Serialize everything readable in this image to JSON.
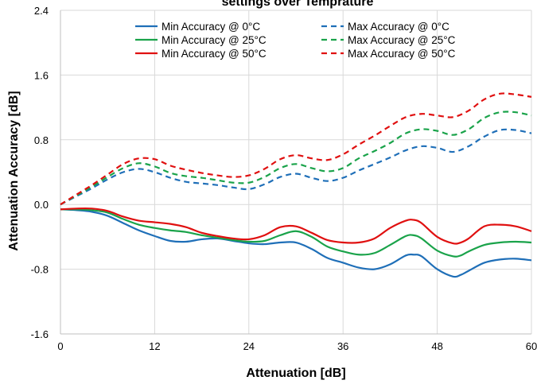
{
  "chart_data": {
    "type": "line",
    "title": "settings over Temprature",
    "xlabel": "Attenuation [dB]",
    "ylabel": "Attenuation Accuracy [dB]",
    "xlim": [
      0,
      60
    ],
    "ylim": [
      -1.6,
      2.4
    ],
    "xticks": [
      0,
      12,
      24,
      36,
      48,
      60
    ],
    "xtick_labels": [
      "0",
      "12",
      "24",
      "36",
      "48",
      "60"
    ],
    "yticks": [
      -1.6,
      -0.8,
      0.0,
      0.8,
      1.6,
      2.4
    ],
    "ytick_labels": [
      "-1.6",
      "-0.8",
      "0.0",
      "0.8",
      "1.6",
      "2.4"
    ],
    "grid": true,
    "legend_position": "top",
    "series": [
      {
        "name": "Min Accuracy @ 0°C",
        "color": "#1f6fb8",
        "dash": "solid",
        "x": [
          0,
          2,
          4,
          6,
          8,
          10,
          12,
          14,
          16,
          18,
          20,
          22,
          24,
          26,
          28,
          30,
          32,
          34,
          36,
          38,
          40,
          42,
          44,
          45,
          46,
          48,
          50,
          51,
          52,
          54,
          56,
          58,
          60
        ],
        "y": [
          -0.06,
          -0.07,
          -0.09,
          -0.14,
          -0.23,
          -0.32,
          -0.39,
          -0.45,
          -0.46,
          -0.43,
          -0.42,
          -0.45,
          -0.48,
          -0.49,
          -0.47,
          -0.47,
          -0.55,
          -0.66,
          -0.72,
          -0.78,
          -0.8,
          -0.74,
          -0.63,
          -0.62,
          -0.64,
          -0.8,
          -0.89,
          -0.87,
          -0.82,
          -0.72,
          -0.68,
          -0.67,
          -0.69
        ]
      },
      {
        "name": "Min Accuracy @ 25°C",
        "color": "#1aa34a",
        "dash": "solid",
        "x": [
          0,
          2,
          4,
          6,
          8,
          10,
          12,
          14,
          16,
          18,
          20,
          22,
          24,
          26,
          28,
          30,
          32,
          34,
          36,
          38,
          40,
          42,
          44,
          45,
          46,
          48,
          50,
          51,
          52,
          54,
          56,
          58,
          60
        ],
        "y": [
          -0.06,
          -0.06,
          -0.07,
          -0.1,
          -0.18,
          -0.25,
          -0.29,
          -0.32,
          -0.34,
          -0.38,
          -0.41,
          -0.44,
          -0.46,
          -0.45,
          -0.38,
          -0.33,
          -0.4,
          -0.52,
          -0.58,
          -0.62,
          -0.6,
          -0.5,
          -0.39,
          -0.38,
          -0.42,
          -0.57,
          -0.64,
          -0.63,
          -0.58,
          -0.5,
          -0.47,
          -0.46,
          -0.47
        ]
      },
      {
        "name": "Min Accuracy @ 50°C",
        "color": "#e01010",
        "dash": "solid",
        "x": [
          0,
          2,
          4,
          6,
          8,
          10,
          12,
          14,
          16,
          18,
          20,
          22,
          24,
          26,
          28,
          30,
          32,
          34,
          36,
          38,
          40,
          42,
          44,
          45,
          46,
          48,
          50,
          51,
          52,
          54,
          56,
          58,
          60
        ],
        "y": [
          -0.06,
          -0.05,
          -0.05,
          -0.08,
          -0.15,
          -0.2,
          -0.22,
          -0.24,
          -0.28,
          -0.35,
          -0.39,
          -0.42,
          -0.43,
          -0.38,
          -0.28,
          -0.27,
          -0.35,
          -0.44,
          -0.47,
          -0.47,
          -0.42,
          -0.29,
          -0.2,
          -0.19,
          -0.23,
          -0.4,
          -0.48,
          -0.47,
          -0.42,
          -0.27,
          -0.25,
          -0.27,
          -0.33
        ]
      },
      {
        "name": "Max Accuracy @ 0°C",
        "color": "#1f6fb8",
        "dash": "dashed",
        "x": [
          0,
          2,
          4,
          6,
          8,
          10,
          12,
          14,
          16,
          18,
          20,
          22,
          24,
          26,
          28,
          30,
          32,
          34,
          36,
          38,
          40,
          42,
          44,
          46,
          48,
          50,
          52,
          54,
          56,
          58,
          60
        ],
        "y": [
          0.0,
          0.1,
          0.2,
          0.31,
          0.4,
          0.44,
          0.4,
          0.33,
          0.28,
          0.26,
          0.24,
          0.21,
          0.19,
          0.25,
          0.34,
          0.38,
          0.33,
          0.29,
          0.33,
          0.42,
          0.5,
          0.58,
          0.67,
          0.72,
          0.7,
          0.65,
          0.72,
          0.84,
          0.92,
          0.92,
          0.88
        ]
      },
      {
        "name": "Max Accuracy @ 25°C",
        "color": "#1aa34a",
        "dash": "dashed",
        "x": [
          0,
          2,
          4,
          6,
          8,
          10,
          12,
          14,
          16,
          18,
          20,
          22,
          24,
          26,
          28,
          30,
          32,
          34,
          36,
          38,
          40,
          42,
          44,
          46,
          48,
          50,
          52,
          54,
          56,
          58,
          60
        ],
        "y": [
          0.0,
          0.11,
          0.22,
          0.34,
          0.45,
          0.51,
          0.47,
          0.39,
          0.35,
          0.33,
          0.3,
          0.27,
          0.27,
          0.34,
          0.45,
          0.5,
          0.45,
          0.41,
          0.45,
          0.57,
          0.66,
          0.76,
          0.88,
          0.93,
          0.91,
          0.86,
          0.93,
          1.07,
          1.14,
          1.14,
          1.1
        ]
      },
      {
        "name": "Max Accuracy @ 50°C",
        "color": "#e01010",
        "dash": "dashed",
        "x": [
          0,
          2,
          4,
          6,
          8,
          10,
          12,
          14,
          16,
          18,
          20,
          22,
          24,
          26,
          28,
          30,
          32,
          34,
          36,
          38,
          40,
          42,
          44,
          46,
          48,
          50,
          52,
          54,
          56,
          58,
          60
        ],
        "y": [
          0.0,
          0.12,
          0.24,
          0.37,
          0.5,
          0.57,
          0.56,
          0.48,
          0.43,
          0.39,
          0.36,
          0.34,
          0.36,
          0.44,
          0.56,
          0.61,
          0.57,
          0.55,
          0.62,
          0.74,
          0.85,
          0.97,
          1.08,
          1.12,
          1.1,
          1.08,
          1.16,
          1.3,
          1.37,
          1.36,
          1.33
        ]
      }
    ]
  }
}
